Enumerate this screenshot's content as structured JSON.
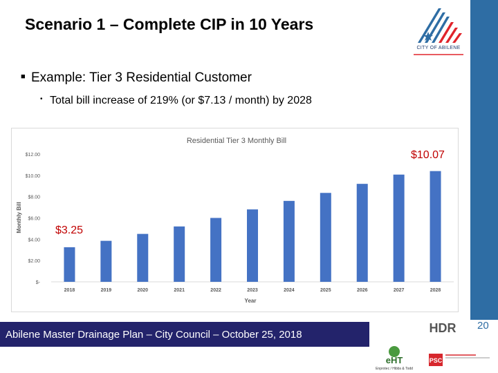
{
  "slide": {
    "title": "Scenario 1 – Complete CIP in 10 Years",
    "bullet_1": "Example: Tier 3 Residential Customer",
    "bullet_2": "Total bill increase of 219% (or $7.13 / month) by 2028",
    "callout_top": "$10.07",
    "callout_bottom": "$3.25",
    "page_number": "20",
    "footer": "Abilene Master Drainage Plan – City Council – October 25, 2018",
    "logo_text": "CITY OF ABILENE",
    "hdr_logo_text": "HDR",
    "eht_logo_text": "eHT",
    "eht_caption": "Enprotec / Hibbs & Todd",
    "psc_logo_text": "PSC"
  },
  "colors": {
    "bar": "#4472c4",
    "callout": "#c00000",
    "sidebar": "#2e6da4",
    "footer": "#23236b"
  },
  "chart_data": {
    "type": "bar",
    "title": "Residential Tier 3 Monthly Bill",
    "xlabel": "Year",
    "ylabel": "Monthly Bill",
    "categories": [
      "2018",
      "2019",
      "2020",
      "2021",
      "2022",
      "2023",
      "2024",
      "2025",
      "2026",
      "2027",
      "2028"
    ],
    "values": [
      3.25,
      3.85,
      4.5,
      5.2,
      6.0,
      6.8,
      7.6,
      8.35,
      9.2,
      10.07,
      10.4
    ],
    "ylim": [
      0,
      12
    ],
    "yticks": [
      "$-",
      "$2.00",
      "$4.00",
      "$6.00",
      "$8.00",
      "$10.00",
      "$12.00"
    ],
    "grid": false,
    "legend": "none"
  }
}
